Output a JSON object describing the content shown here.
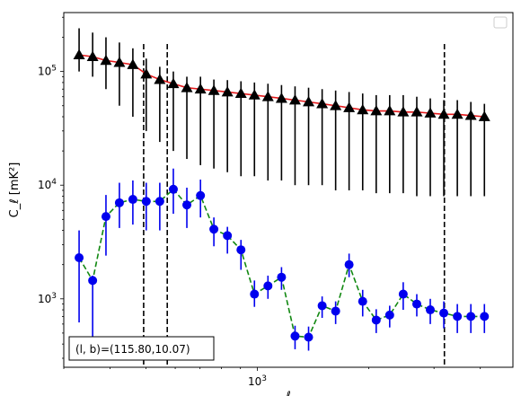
{
  "chart_data": {
    "type": "scatter",
    "title": "",
    "xlabel": "ℓ",
    "ylabel": "C_ℓ  [mK²]",
    "xscale": "log",
    "yscale": "log",
    "xlim": [
      300,
      4900
    ],
    "ylim": [
      250,
      330000
    ],
    "grid": false,
    "legend_placement": "top-right",
    "x_tick_labels": [
      {
        "value": 1000,
        "base": "10",
        "exp": "3"
      }
    ],
    "y_tick_labels": [
      {
        "value": 1000,
        "base": "10",
        "exp": "3"
      },
      {
        "value": 10000,
        "base": "10",
        "exp": "4"
      },
      {
        "value": 100000,
        "base": "10",
        "exp": "5"
      }
    ],
    "vlines": [
      493,
      571,
      3200
    ],
    "annotation": "(l, b)=(115.80,10.07)",
    "series": [
      {
        "marker": "triangle",
        "marker_color": "#000000",
        "line_color": "#e41a1c",
        "line_style": "solid",
        "x": [
          330,
          359,
          390,
          424,
          461,
          501,
          545,
          593,
          645,
          702,
          763,
          830,
          903,
          982,
          1068,
          1162,
          1264,
          1375,
          1496,
          1627,
          1769,
          1925,
          2094,
          2277,
          2477,
          2695,
          2931,
          3188,
          3468,
          3772,
          4104
        ],
        "y": [
          140000,
          135000,
          125000,
          120000,
          115000,
          95000,
          85000,
          78000,
          72000,
          70000,
          68000,
          66000,
          64000,
          62000,
          60000,
          58000,
          56000,
          54000,
          52000,
          50000,
          48000,
          46000,
          45000,
          45000,
          44000,
          44000,
          43000,
          42000,
          42000,
          41000,
          40000
        ],
        "err_low": [
          100000,
          90000,
          70000,
          50000,
          40000,
          30000,
          24000,
          20000,
          17000,
          15000,
          14000,
          13000,
          12000,
          12000,
          11000,
          11000,
          10000,
          10000,
          10000,
          9000,
          9000,
          9000,
          8500,
          8500,
          8500,
          8000,
          8000,
          8000,
          8000,
          8000,
          8000
        ],
        "err_high": [
          240000,
          220000,
          200000,
          180000,
          160000,
          130000,
          110000,
          100000,
          90000,
          90000,
          85000,
          84000,
          82000,
          80000,
          78000,
          76000,
          74000,
          72000,
          70000,
          68000,
          66000,
          64000,
          62000,
          62000,
          62000,
          60000,
          58000,
          56000,
          56000,
          54000,
          52000
        ]
      },
      {
        "marker": "circle",
        "marker_color": "#0000ee",
        "line_color": "#118811",
        "line_style": "dashed",
        "x": [
          330,
          359,
          390,
          424,
          461,
          501,
          545,
          593,
          645,
          702,
          763,
          830,
          903,
          982,
          1068,
          1162,
          1264,
          1375,
          1496,
          1627,
          1769,
          1925,
          2094,
          2277,
          2477,
          2695,
          2931,
          3188,
          3468,
          3772,
          4104
        ],
        "y": [
          2300,
          1450,
          5300,
          7000,
          7500,
          7200,
          7200,
          9200,
          6700,
          8100,
          4100,
          3600,
          2700,
          1100,
          1300,
          1550,
          470,
          460,
          870,
          780,
          2000,
          950,
          650,
          720,
          1100,
          900,
          800,
          750,
          700,
          700,
          700
        ],
        "err_low": [
          620,
          420,
          2400,
          4200,
          4500,
          4000,
          4000,
          5600,
          4200,
          5200,
          2900,
          2500,
          1800,
          850,
          1000,
          1200,
          360,
          350,
          680,
          600,
          1550,
          700,
          500,
          560,
          800,
          700,
          600,
          550,
          500,
          500,
          500
        ],
        "err_high": [
          4000,
          1600,
          8200,
          10500,
          11000,
          10500,
          10500,
          14000,
          9500,
          11200,
          5200,
          4300,
          3300,
          1450,
          1600,
          1900,
          580,
          570,
          1050,
          950,
          2500,
          1200,
          810,
          870,
          1400,
          1100,
          1000,
          950,
          900,
          900,
          900
        ]
      }
    ]
  }
}
